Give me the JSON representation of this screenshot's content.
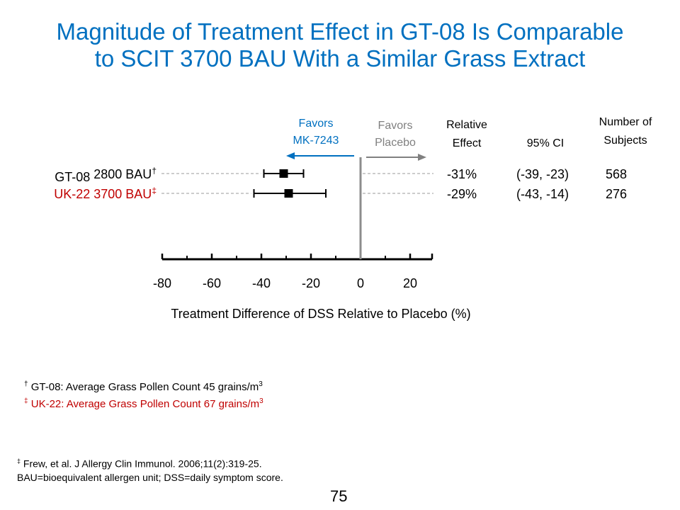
{
  "slide": {
    "title_line1": "Magnitude of Treatment Effect in GT-08 Is Comparable",
    "title_line2": "to SCIT 3700 BAU With a Similar Grass Extract",
    "page_number": "75"
  },
  "colors": {
    "title": "#0070c0",
    "gt08": "#000000",
    "uk22": "#c00000",
    "favors_active": "#0070c0",
    "favors_placebo": "#808080",
    "zero_line": "#8c8c8c"
  },
  "chart_data": {
    "type": "forest",
    "xlabel": "Treatment Difference of DSS Relative to Placebo (%)",
    "xlim": [
      -80,
      20
    ],
    "xticks": [
      -80,
      -60,
      -40,
      -20,
      0,
      20
    ],
    "xtick_labels": [
      "-80",
      "-60",
      "-40",
      "-20",
      "0",
      "20"
    ],
    "favors_left": [
      "Favors",
      "MK-7243"
    ],
    "favors_right": [
      "Favors",
      "Placebo"
    ],
    "column_headers": {
      "relative_effect": [
        "Relative",
        "Effect"
      ],
      "ci": "95% CI",
      "subjects": [
        "Number of",
        "Subjects"
      ]
    },
    "rows": [
      {
        "label_a": "GT-08",
        "label_b": "2800 BAU",
        "mark": "†",
        "point": -31,
        "ci_low": -39,
        "ci_high": -23,
        "relative_effect": "-31%",
        "ci_text": "(-39,  -23)",
        "n": "568",
        "color": "#000000"
      },
      {
        "label_a": "UK-22",
        "label_b": "3700 BAU",
        "mark": "‡",
        "point": -29,
        "ci_low": -43,
        "ci_high": -14,
        "relative_effect": "-29%",
        "ci_text": "(-43,  -14)",
        "n": "276",
        "color": "#c00000"
      }
    ]
  },
  "footnotes": [
    {
      "mark": "†",
      "text": "GT-08: Average Grass Pollen Count 45 grains/m",
      "sup": "3",
      "color": "#000000"
    },
    {
      "mark": "‡",
      "text": "UK-22: Average Grass Pollen Count 67 grains/m",
      "sup": "3",
      "color": "#c00000"
    }
  ],
  "reference": {
    "mark": "‡",
    "line1": "Frew, et al. J Allergy Clin Immunol. 2006;11(2):319-25.",
    "line2": "BAU=bioequivalent allergen unit; DSS=daily symptom score."
  }
}
